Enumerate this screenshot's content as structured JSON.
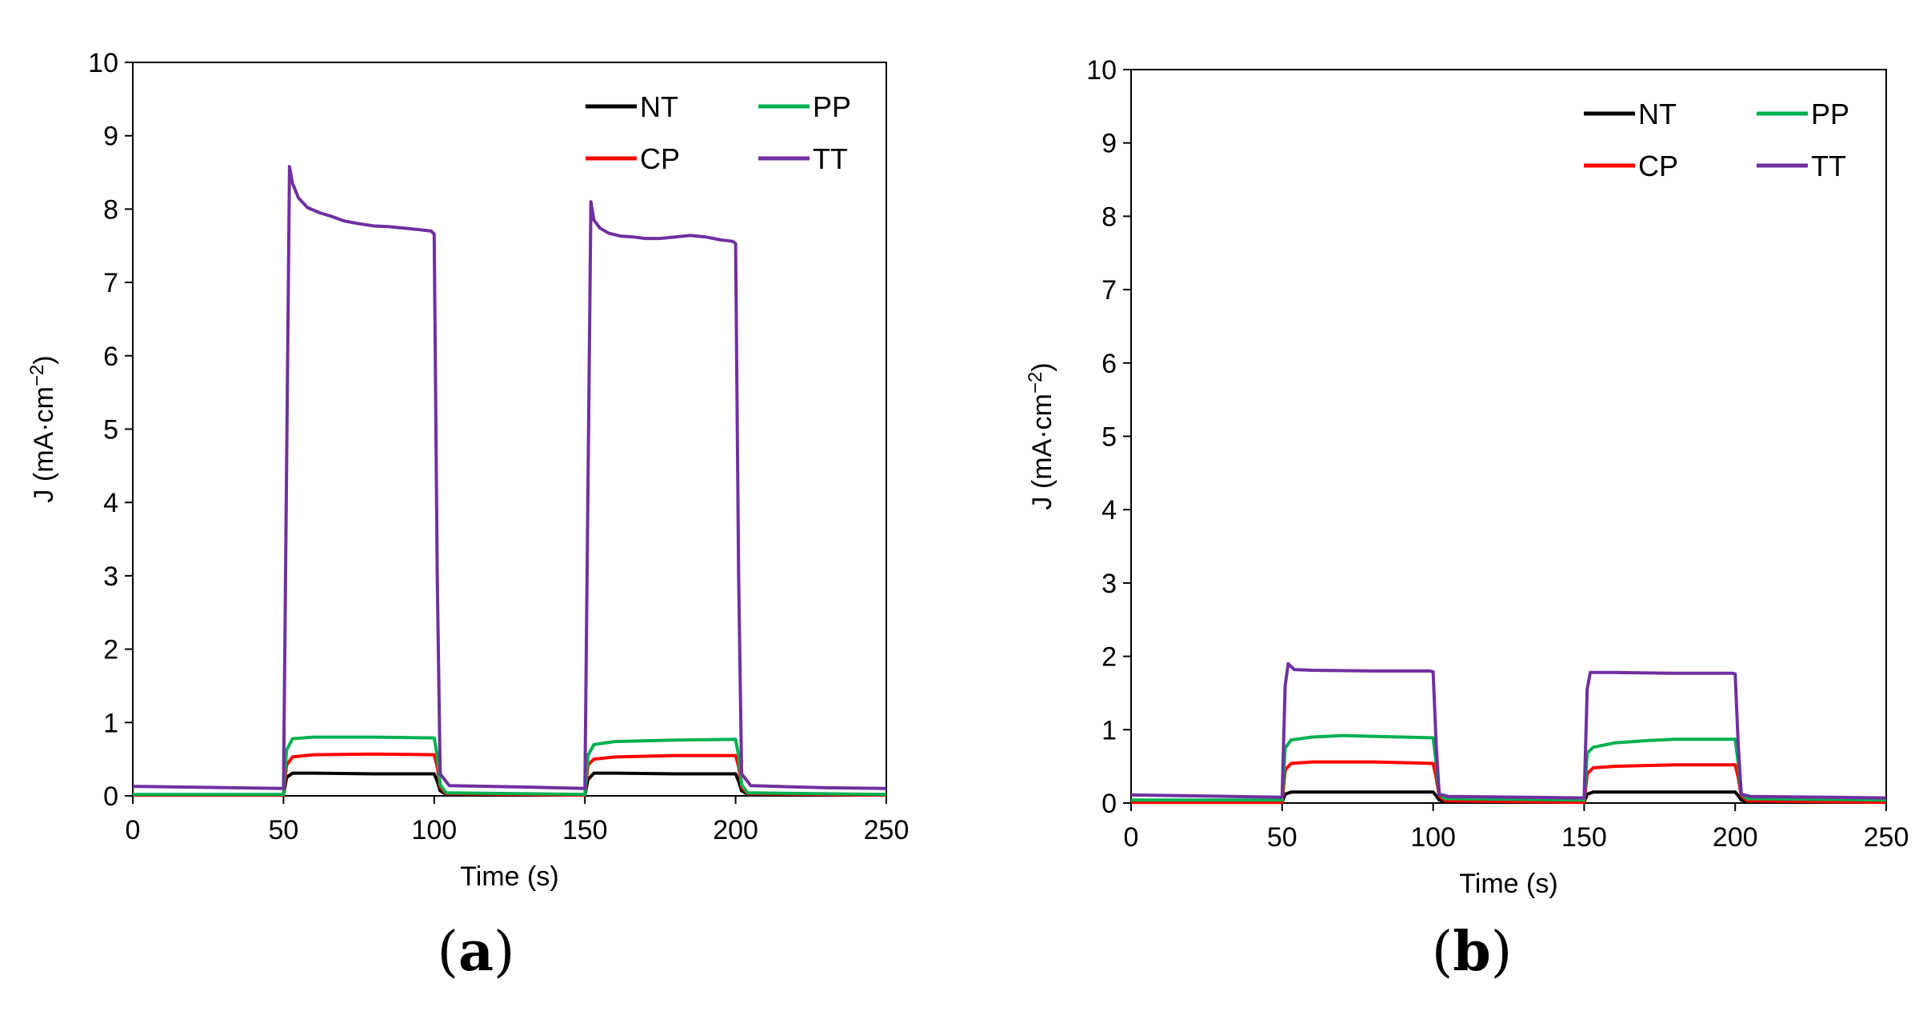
{
  "figure": {
    "panels": [
      "a",
      "b"
    ]
  },
  "chart_data": [
    {
      "type": "line",
      "panel": "a",
      "xlabel": "Time (s)",
      "ylabel": "J (mA·cm",
      "ylabel_sup": "−2",
      "ylabel_close": ")",
      "xlim": [
        0,
        250
      ],
      "ylim": [
        0,
        10
      ],
      "xticks": [
        0,
        50,
        100,
        150,
        200,
        250
      ],
      "yticks": [
        0,
        1,
        2,
        3,
        4,
        5,
        6,
        7,
        8,
        9,
        10
      ],
      "grid": false,
      "legend": "top-right",
      "series": [
        {
          "name": "NT",
          "color": "#000000",
          "x": [
            0,
            50,
            51,
            53,
            60,
            80,
            100,
            101,
            102,
            104,
            150,
            151,
            153,
            160,
            180,
            200,
            201,
            202,
            204,
            250
          ],
          "y": [
            0.01,
            0.01,
            0.25,
            0.31,
            0.31,
            0.3,
            0.3,
            0.2,
            0.07,
            0.02,
            0.01,
            0.22,
            0.31,
            0.31,
            0.3,
            0.3,
            0.2,
            0.07,
            0.02,
            0.01
          ]
        },
        {
          "name": "CP",
          "color": "#ff0000",
          "x": [
            0,
            50,
            51,
            53,
            60,
            80,
            100,
            101,
            102,
            104,
            150,
            151,
            153,
            160,
            180,
            200,
            201,
            202,
            204,
            250
          ],
          "y": [
            0.01,
            0.01,
            0.42,
            0.53,
            0.56,
            0.57,
            0.56,
            0.4,
            0.12,
            0.03,
            0.01,
            0.42,
            0.5,
            0.53,
            0.55,
            0.55,
            0.4,
            0.12,
            0.03,
            0.01
          ]
        },
        {
          "name": "PP",
          "color": "#00b050",
          "x": [
            0,
            50,
            51,
            53,
            60,
            80,
            100,
            101,
            102,
            104,
            150,
            151,
            153,
            160,
            180,
            200,
            201,
            202,
            204,
            250
          ],
          "y": [
            0.02,
            0.02,
            0.62,
            0.78,
            0.8,
            0.8,
            0.79,
            0.55,
            0.15,
            0.04,
            0.02,
            0.55,
            0.7,
            0.74,
            0.76,
            0.77,
            0.55,
            0.15,
            0.04,
            0.02
          ]
        },
        {
          "name": "TT",
          "color": "#7030a0",
          "x": [
            0,
            50,
            52,
            53,
            55,
            58,
            62,
            66,
            70,
            75,
            80,
            85,
            90,
            95,
            99,
            100,
            101,
            102,
            105,
            130,
            150,
            152,
            153,
            155,
            158,
            162,
            166,
            170,
            175,
            180,
            185,
            190,
            195,
            199,
            200,
            201,
            202,
            205,
            230,
            250
          ],
          "y": [
            0.13,
            0.1,
            8.58,
            8.35,
            8.15,
            8.02,
            7.95,
            7.9,
            7.84,
            7.8,
            7.77,
            7.76,
            7.74,
            7.72,
            7.7,
            7.66,
            3.0,
            0.3,
            0.14,
            0.12,
            0.1,
            8.1,
            7.85,
            7.74,
            7.67,
            7.63,
            7.62,
            7.6,
            7.6,
            7.62,
            7.64,
            7.62,
            7.58,
            7.56,
            7.53,
            3.0,
            0.3,
            0.14,
            0.11,
            0.1
          ]
        }
      ]
    },
    {
      "type": "line",
      "panel": "b",
      "xlabel": "Time (s)",
      "ylabel": "J (mA·cm",
      "ylabel_sup": "−2",
      "ylabel_close": ")",
      "xlim": [
        0,
        250
      ],
      "ylim": [
        0,
        10
      ],
      "xticks": [
        0,
        50,
        100,
        150,
        200,
        250
      ],
      "yticks": [
        0,
        1,
        2,
        3,
        4,
        5,
        6,
        7,
        8,
        9,
        10
      ],
      "grid": false,
      "legend": "top-right",
      "series": [
        {
          "name": "NT",
          "color": "#000000",
          "x": [
            0,
            50,
            51,
            53,
            60,
            80,
            100,
            101,
            102,
            104,
            150,
            151,
            153,
            160,
            180,
            200,
            201,
            202,
            204,
            250
          ],
          "y": [
            0.01,
            0.01,
            0.12,
            0.15,
            0.15,
            0.15,
            0.15,
            0.1,
            0.04,
            0.02,
            0.01,
            0.12,
            0.15,
            0.15,
            0.15,
            0.15,
            0.1,
            0.04,
            0.02,
            0.01
          ]
        },
        {
          "name": "CP",
          "color": "#ff0000",
          "x": [
            0,
            50,
            51,
            53,
            60,
            80,
            100,
            101,
            102,
            104,
            150,
            151,
            153,
            160,
            180,
            200,
            201,
            202,
            204,
            250
          ],
          "y": [
            0.01,
            0.01,
            0.45,
            0.54,
            0.56,
            0.56,
            0.54,
            0.35,
            0.1,
            0.03,
            0.01,
            0.4,
            0.48,
            0.5,
            0.52,
            0.52,
            0.35,
            0.1,
            0.03,
            0.01
          ]
        },
        {
          "name": "PP",
          "color": "#00b050",
          "x": [
            0,
            50,
            51,
            53,
            60,
            70,
            80,
            100,
            101,
            102,
            104,
            150,
            151,
            153,
            160,
            170,
            180,
            200,
            201,
            202,
            204,
            250
          ],
          "y": [
            0.04,
            0.04,
            0.75,
            0.86,
            0.9,
            0.92,
            0.91,
            0.89,
            0.55,
            0.12,
            0.06,
            0.04,
            0.68,
            0.76,
            0.82,
            0.85,
            0.87,
            0.87,
            0.55,
            0.12,
            0.06,
            0.04
          ]
        },
        {
          "name": "TT",
          "color": "#7030a0",
          "x": [
            0,
            50,
            51,
            52,
            54,
            60,
            80,
            99,
            100,
            101,
            102,
            105,
            130,
            150,
            151,
            152,
            154,
            160,
            180,
            199,
            200,
            201,
            202,
            205,
            230,
            250
          ],
          "y": [
            0.11,
            0.08,
            1.6,
            1.9,
            1.82,
            1.81,
            1.8,
            1.8,
            1.79,
            0.8,
            0.12,
            0.09,
            0.08,
            0.07,
            1.55,
            1.78,
            1.78,
            1.78,
            1.77,
            1.77,
            1.76,
            0.8,
            0.12,
            0.09,
            0.08,
            0.07
          ]
        }
      ]
    }
  ]
}
